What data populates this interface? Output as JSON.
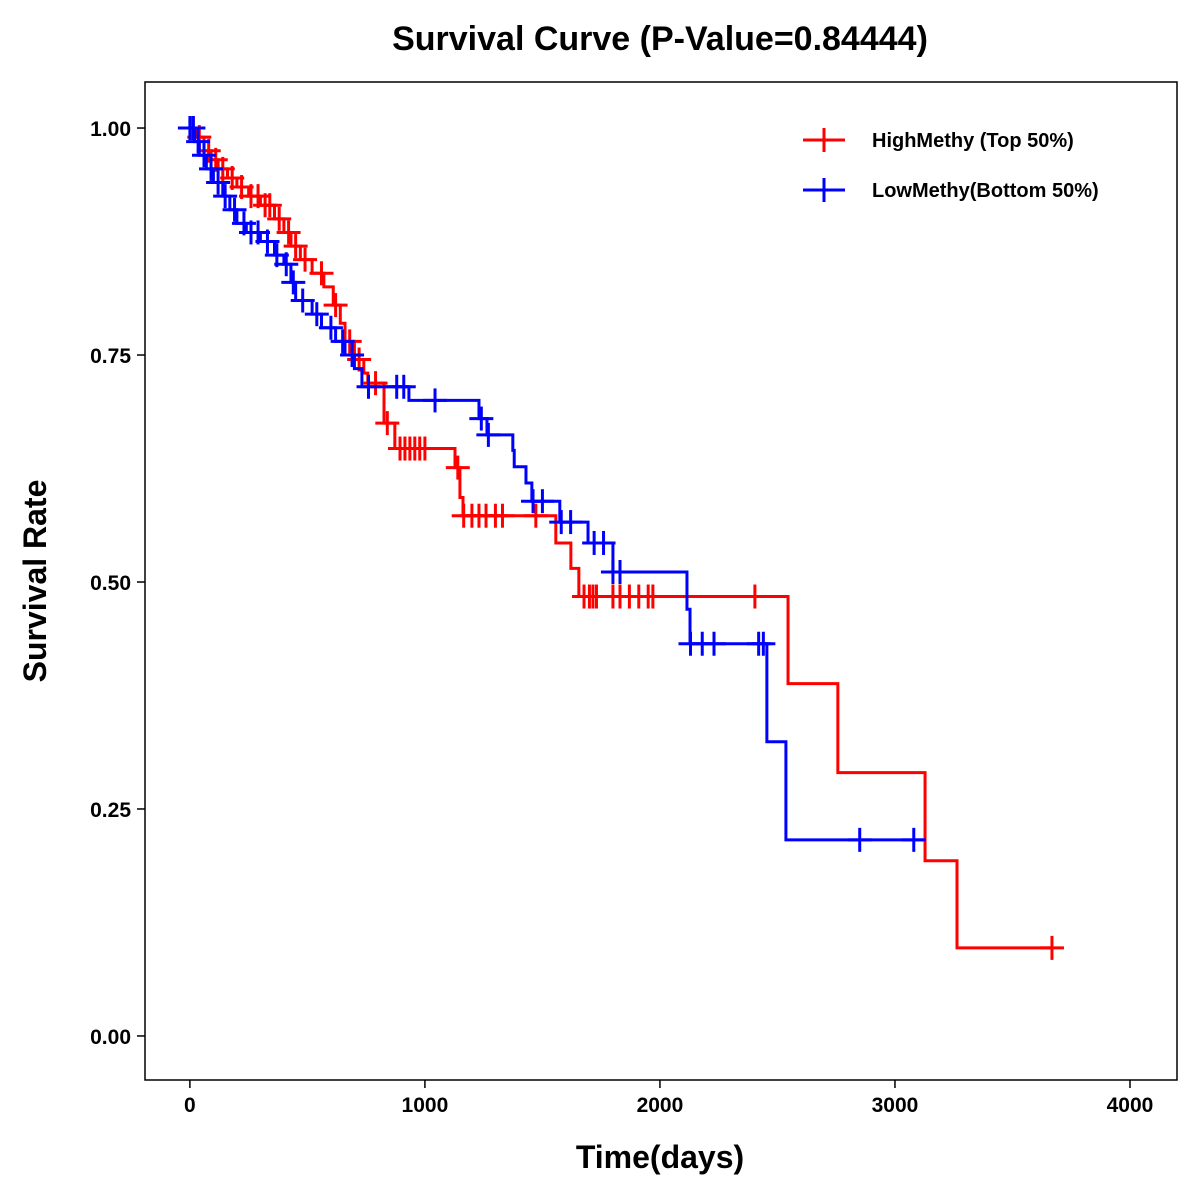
{
  "chart_data": {
    "type": "line",
    "subtype": "kaplan-meier step",
    "title": "Survival Curve (P-Value=0.84444)",
    "xlabel": "Time(days)",
    "ylabel": "Survival Rate",
    "xlim": [
      -191,
      4200
    ],
    "ylim": [
      -0.0485,
      1.0507
    ],
    "xticks": [
      0,
      1000,
      2000,
      3000,
      4000
    ],
    "xtick_labels": [
      "0",
      "1000",
      "2000",
      "3000",
      "4000"
    ],
    "yticks": [
      0,
      0.25,
      0.5,
      0.75,
      1.0
    ],
    "ytick_labels": [
      "0.00",
      "0.25",
      "0.50",
      "0.75",
      "1.00"
    ],
    "grid": false,
    "legend_position": "top-right",
    "series": [
      {
        "name": "HighMethy (Top 50%)",
        "color": "#ff0000",
        "steps": [
          [
            0,
            1.0
          ],
          [
            30,
            0.99
          ],
          [
            60,
            0.975
          ],
          [
            90,
            0.965
          ],
          [
            120,
            0.955
          ],
          [
            160,
            0.945
          ],
          [
            200,
            0.935
          ],
          [
            250,
            0.925
          ],
          [
            300,
            0.915
          ],
          [
            360,
            0.9
          ],
          [
            400,
            0.885
          ],
          [
            430,
            0.87
          ],
          [
            470,
            0.855
          ],
          [
            520,
            0.84
          ],
          [
            570,
            0.825
          ],
          [
            610,
            0.805
          ],
          [
            640,
            0.785
          ],
          [
            660,
            0.765
          ],
          [
            700,
            0.745
          ],
          [
            740,
            0.73
          ],
          [
            757,
            0.719
          ],
          [
            826,
            0.675
          ],
          [
            872,
            0.647
          ],
          [
            1128,
            0.626
          ],
          [
            1149,
            0.593
          ],
          [
            1162,
            0.573
          ],
          [
            1557,
            0.543
          ],
          [
            1621,
            0.515
          ],
          [
            1655,
            0.484
          ],
          [
            2545,
            0.388
          ],
          [
            2757,
            0.29
          ],
          [
            3128,
            0.193
          ],
          [
            3264,
            0.097
          ],
          [
            3668,
            0.097
          ]
        ],
        "censored": [
          10,
          40,
          80,
          110,
          140,
          180,
          220,
          260,
          290,
          320,
          340,
          380,
          420,
          450,
          490,
          560,
          620,
          680,
          720,
          790,
          840,
          894,
          915,
          936,
          957,
          978,
          1000,
          1140,
          1165,
          1200,
          1230,
          1260,
          1300,
          1330,
          1472,
          1677,
          1700,
          1715,
          1730,
          1800,
          1830,
          1870,
          1910,
          1950,
          1970,
          2404,
          3668
        ]
      },
      {
        "name": "LowMethy(Bottom 50%)",
        "color": "#0000ff",
        "steps": [
          [
            0,
            1.0
          ],
          [
            20,
            0.985
          ],
          [
            40,
            0.97
          ],
          [
            70,
            0.955
          ],
          [
            100,
            0.94
          ],
          [
            140,
            0.925
          ],
          [
            170,
            0.91
          ],
          [
            200,
            0.895
          ],
          [
            240,
            0.885
          ],
          [
            300,
            0.875
          ],
          [
            360,
            0.86
          ],
          [
            400,
            0.85
          ],
          [
            430,
            0.83
          ],
          [
            450,
            0.81
          ],
          [
            520,
            0.795
          ],
          [
            560,
            0.78
          ],
          [
            620,
            0.765
          ],
          [
            660,
            0.75
          ],
          [
            700,
            0.735
          ],
          [
            732,
            0.715
          ],
          [
            932,
            0.7
          ],
          [
            1230,
            0.68
          ],
          [
            1264,
            0.662
          ],
          [
            1374,
            0.645
          ],
          [
            1380,
            0.627
          ],
          [
            1430,
            0.609
          ],
          [
            1455,
            0.589
          ],
          [
            1574,
            0.566
          ],
          [
            1694,
            0.543
          ],
          [
            1800,
            0.511
          ],
          [
            2115,
            0.47
          ],
          [
            2128,
            0.432
          ],
          [
            2455,
            0.324
          ],
          [
            2536,
            0.216
          ],
          [
            3123,
            0.216
          ]
        ],
        "censored": [
          0,
          15,
          35,
          60,
          90,
          120,
          150,
          190,
          230,
          260,
          290,
          330,
          370,
          410,
          440,
          480,
          540,
          600,
          650,
          690,
          760,
          880,
          910,
          1043,
          1240,
          1270,
          1460,
          1500,
          1580,
          1620,
          1720,
          1760,
          1800,
          1830,
          2130,
          2180,
          2230,
          2420,
          2440,
          2850,
          3080
        ]
      }
    ]
  }
}
